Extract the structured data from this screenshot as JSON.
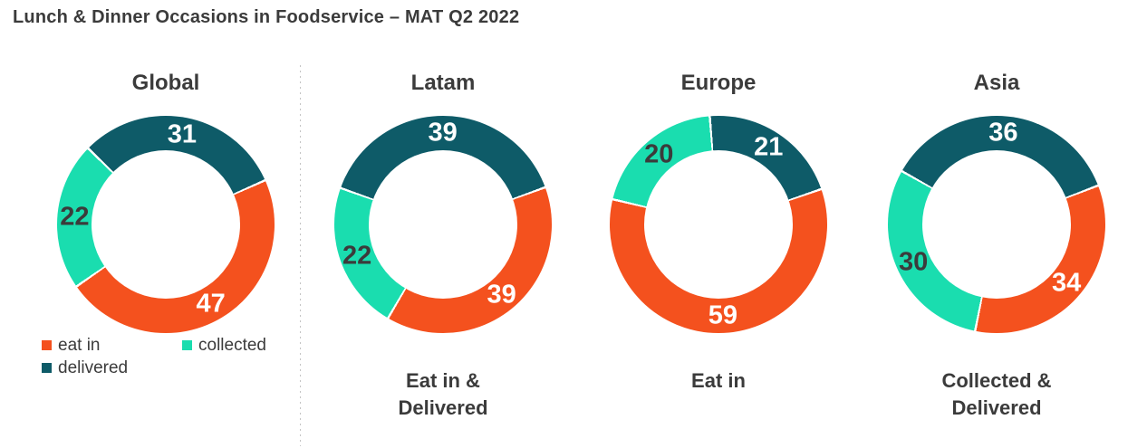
{
  "page": {
    "title": "Lunch & Dinner Occasions in Foodservice – MAT Q2 2022"
  },
  "colors": {
    "eat_in": "#F4511E",
    "collected": "#1ADDAF",
    "delivered": "#0E5B68",
    "text_dark": "#3B3B3B",
    "value_on_dark": "#FFFFFF",
    "separator": "#C4C4C4"
  },
  "series": [
    {
      "name": "eat in",
      "color_key": "eat_in",
      "value_label_color": "#FFFFFF"
    },
    {
      "name": "collected",
      "color_key": "collected",
      "value_label_color": "#3B3B3B"
    },
    {
      "name": "delivered",
      "color_key": "delivered",
      "value_label_color": "#FFFFFF"
    }
  ],
  "legend": {
    "items": [
      {
        "label": "eat in",
        "series": "eat in"
      },
      {
        "label": "delivered",
        "series": "delivered"
      },
      {
        "label": "collected",
        "series": "collected"
      }
    ]
  },
  "chart_data": [
    {
      "type": "donut",
      "title": "Global",
      "caption": "",
      "start_angle": 66,
      "segments": [
        {
          "name": "eat in",
          "value": 47
        },
        {
          "name": "collected",
          "value": 22
        },
        {
          "name": "delivered",
          "value": 31
        }
      ]
    },
    {
      "type": "donut",
      "title": "Latam",
      "caption": "Eat in &\nDelivered",
      "start_angle": 70,
      "segments": [
        {
          "name": "eat in",
          "value": 39
        },
        {
          "name": "collected",
          "value": 22
        },
        {
          "name": "delivered",
          "value": 39
        }
      ]
    },
    {
      "type": "donut",
      "title": "Europe",
      "caption": "Eat in",
      "start_angle": 71,
      "segments": [
        {
          "name": "eat in",
          "value": 59
        },
        {
          "name": "collected",
          "value": 20
        },
        {
          "name": "delivered",
          "value": 21
        }
      ]
    },
    {
      "type": "donut",
      "title": "Asia",
      "caption": "Collected &\nDelivered",
      "start_angle": 69,
      "segments": [
        {
          "name": "eat in",
          "value": 34
        },
        {
          "name": "collected",
          "value": 30
        },
        {
          "name": "delivered",
          "value": 36
        }
      ]
    }
  ]
}
